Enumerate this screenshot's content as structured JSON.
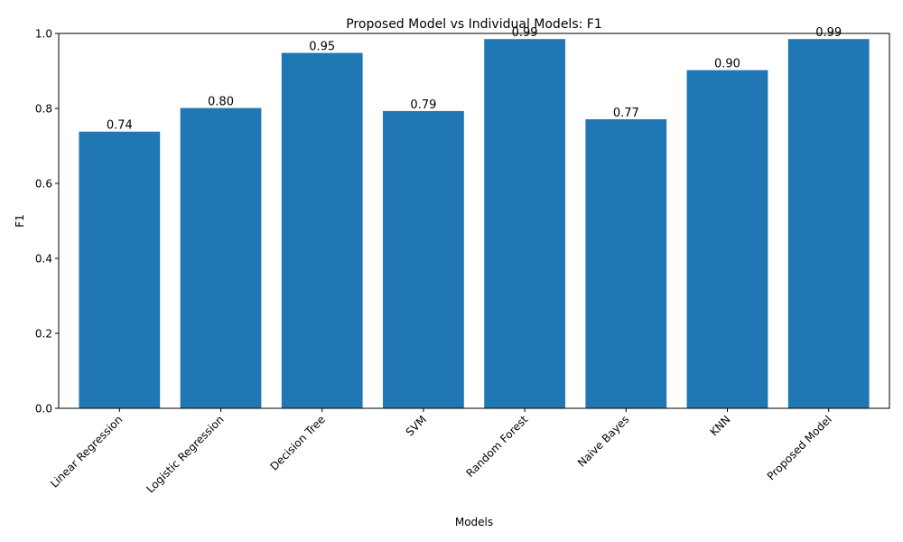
{
  "chart_data": {
    "type": "bar",
    "title": "Proposed Model vs Individual Models: F1",
    "xlabel": "Models",
    "ylabel": "F1",
    "categories": [
      "Linear Regression",
      "Logistic Regression",
      "Decision Tree",
      "SVM",
      "Random Forest",
      "Naive Bayes",
      "KNN",
      "Proposed Model"
    ],
    "values": [
      0.738,
      0.801,
      0.948,
      0.793,
      0.985,
      0.771,
      0.902,
      0.985
    ],
    "value_labels": [
      "0.74",
      "0.80",
      "0.95",
      "0.79",
      "0.99",
      "0.77",
      "0.90",
      "0.99"
    ],
    "ylim": [
      0,
      1.0
    ],
    "yticks": [
      0.0,
      0.2,
      0.4,
      0.6,
      0.8,
      1.0
    ],
    "ytick_labels": [
      "0.0",
      "0.2",
      "0.4",
      "0.6",
      "0.8",
      "1.0"
    ],
    "bar_color": "#1f77b4",
    "grid": false,
    "legend": "none"
  }
}
